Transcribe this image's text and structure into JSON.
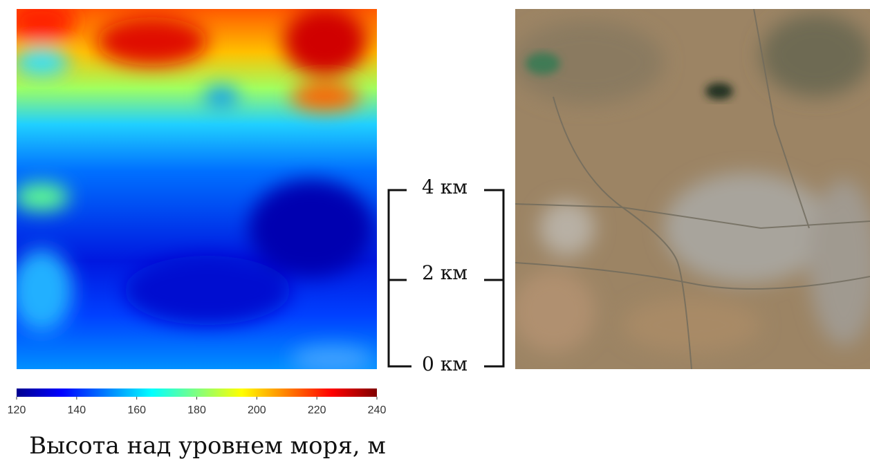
{
  "colorbar": {
    "lim": [
      120,
      240
    ],
    "ticks": [
      120,
      140,
      160,
      180,
      200,
      220,
      240
    ],
    "label": "Высота над уровнем моря, м"
  },
  "scale_bar": {
    "labels": [
      "4 км",
      "2 км",
      "0 км"
    ]
  }
}
